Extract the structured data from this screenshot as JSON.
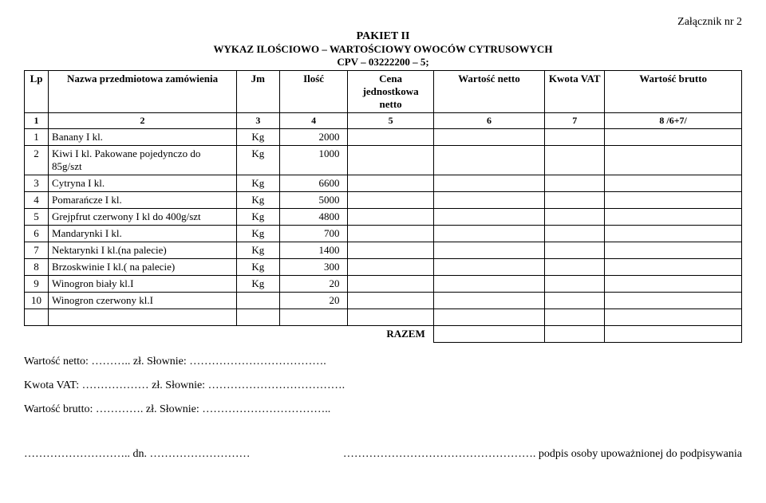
{
  "attachment": "Załącznik nr 2",
  "header": {
    "pakiet": "PAKIET II",
    "wykaz": "WYKAZ ILOŚCIOWO – WARTOŚCIOWY OWOCÓW CYTRUSOWYCH",
    "cpv": "CPV – 03222200 – 5;"
  },
  "columns": {
    "lp": "Lp",
    "nazwa": "Nazwa przedmiotowa zamówienia",
    "jm": "Jm",
    "ilosc": "Ilość",
    "cena": "Cena jednostkowa netto",
    "wnet": "Wartość netto",
    "vat": "Kwota VAT",
    "wbrutto": "Wartość brutto"
  },
  "numrow": {
    "c1": "1",
    "c2": "2",
    "c3": "3",
    "c4": "4",
    "c5": "5",
    "c6": "6",
    "c7": "7",
    "c8": "8 /6+7/"
  },
  "rows": [
    {
      "lp": "1",
      "nazwa": "Banany I kl.",
      "jm": "Kg",
      "ilosc": "2000"
    },
    {
      "lp": "2",
      "nazwa": "Kiwi I kl. Pakowane pojedynczo do 85g/szt",
      "jm": "Kg",
      "ilosc": "1000"
    },
    {
      "lp": "3",
      "nazwa": "Cytryna I kl.",
      "jm": "Kg",
      "ilosc": "6600"
    },
    {
      "lp": "4",
      "nazwa": "Pomarańcze  I kl.",
      "jm": "Kg",
      "ilosc": "5000"
    },
    {
      "lp": "5",
      "nazwa": "Grejpfrut czerwony I kl do 400g/szt",
      "jm": "Kg",
      "ilosc": "4800"
    },
    {
      "lp": "6",
      "nazwa": "Mandarynki I kl.",
      "jm": "Kg",
      "ilosc": "700"
    },
    {
      "lp": "7",
      "nazwa": "Nektarynki I kl.(na palecie)",
      "jm": "Kg",
      "ilosc": "1400"
    },
    {
      "lp": "8",
      "nazwa": "Brzoskwinie I kl.( na palecie)",
      "jm": "Kg",
      "ilosc": "300"
    },
    {
      "lp": "9",
      "nazwa": "Winogron biały kl.I",
      "jm": "Kg",
      "ilosc": "20"
    },
    {
      "lp": "10",
      "nazwa": "Winogron czerwony kl.I",
      "jm": "",
      "ilosc": "20"
    }
  ],
  "razem": "RAZEM",
  "footer": {
    "wnet": "Wartość netto: ……….. zł. Słownie: ……………………………….",
    "vat": "Kwota VAT: ……………… zł. Słownie: ……………………………….",
    "wbrutto": "Wartość brutto: …………. zł. Słownie: ……………………………..",
    "dn": "……………………….. dn. ………………………",
    "podpis": "……………………………………………. podpis osoby upoważnionej do podpisywania"
  }
}
